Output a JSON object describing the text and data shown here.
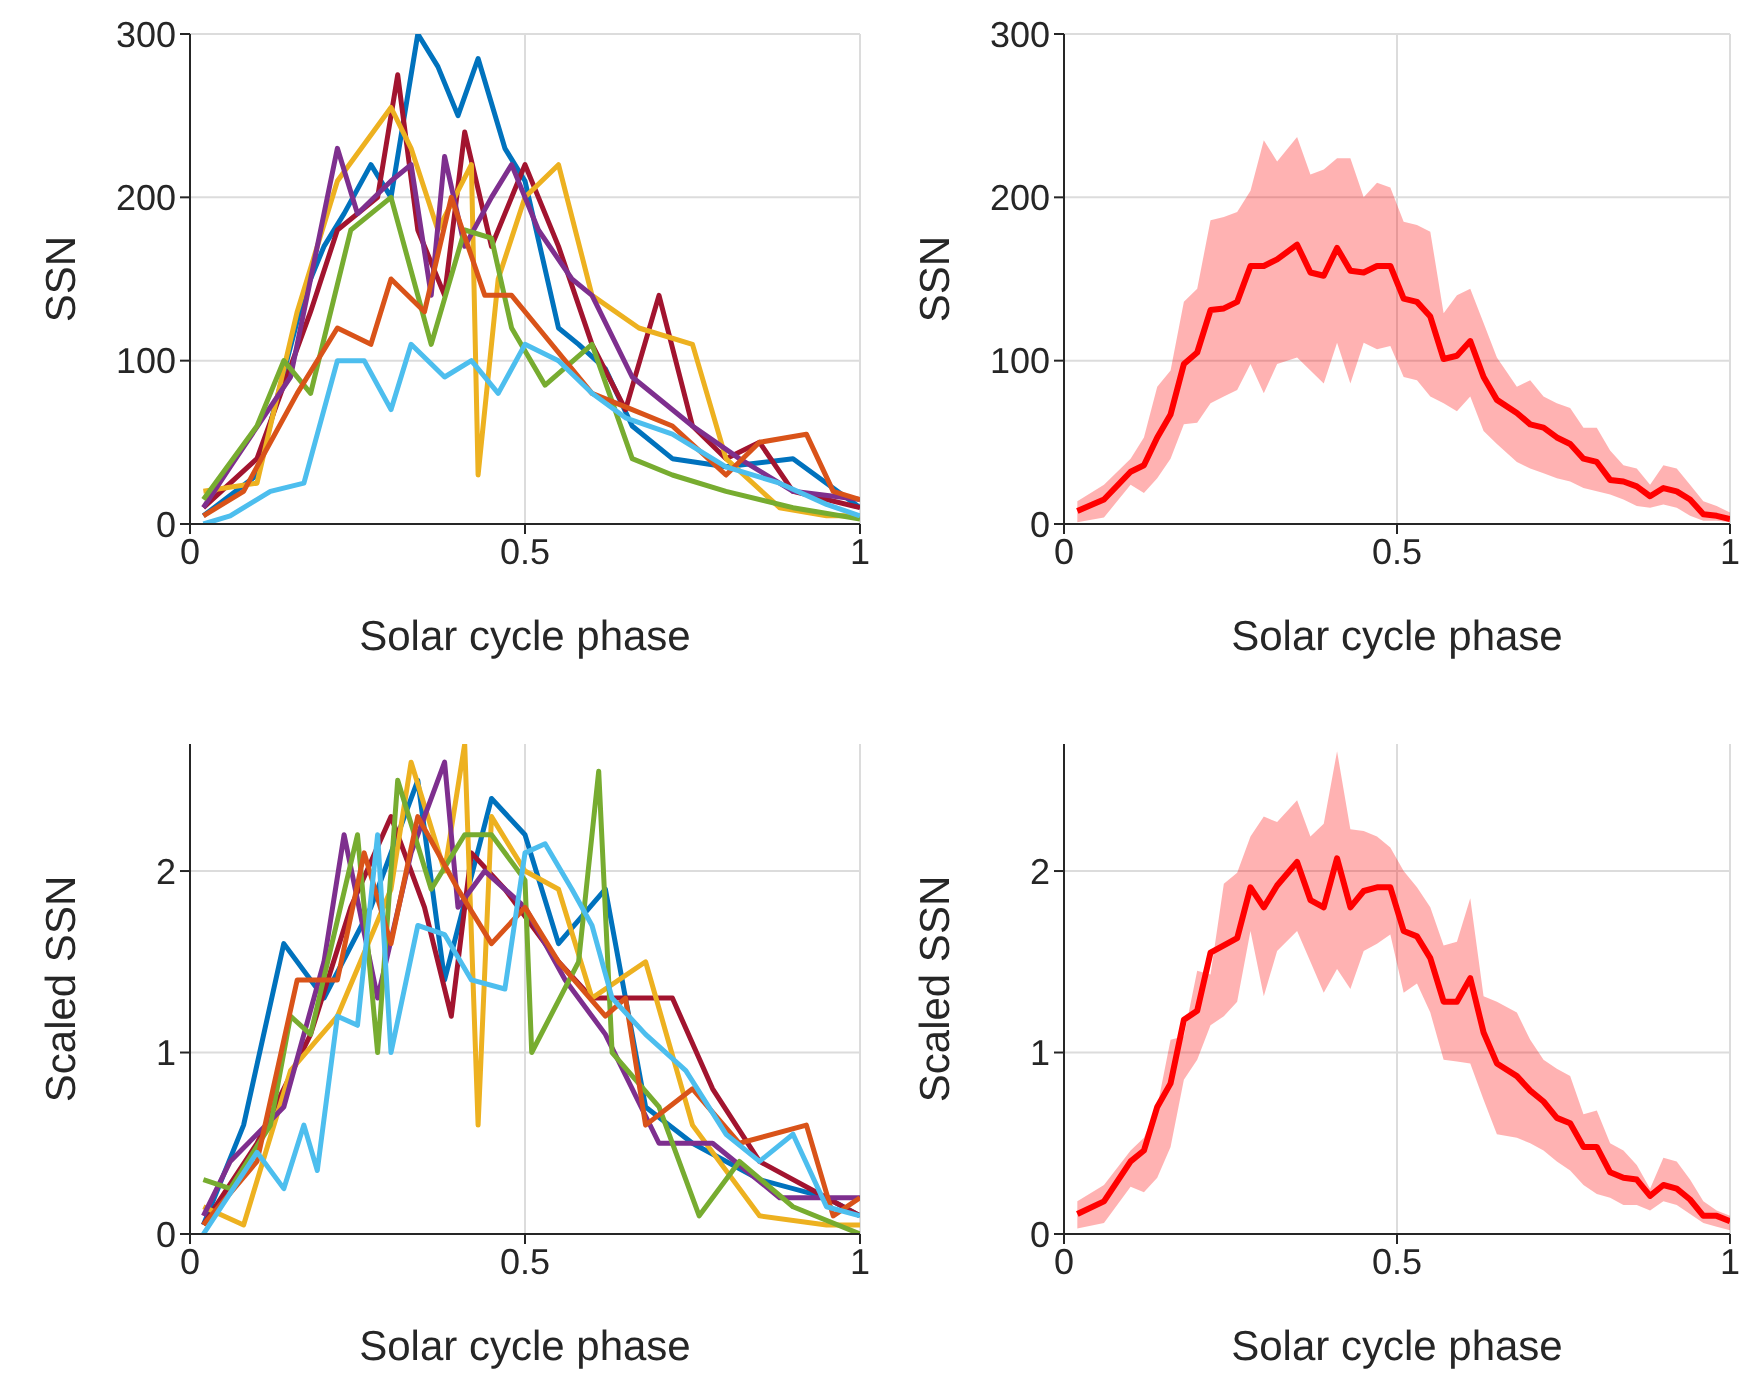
{
  "chart_data": [
    {
      "type": "line",
      "xlabel": "Solar cycle phase",
      "ylabel": "SSN",
      "xlim": [
        0,
        1
      ],
      "xticks": [
        0,
        0.5,
        1
      ],
      "ylim": [
        0,
        300
      ],
      "yticks": [
        0,
        100,
        200,
        300
      ],
      "grid": true,
      "line_style": "solid",
      "marker": "none",
      "series": [
        {
          "color": "#0072bd",
          "x": [
            0.02,
            0.1,
            0.17,
            0.2,
            0.23,
            0.27,
            0.3,
            0.34,
            0.37,
            0.4,
            0.43,
            0.47,
            0.5,
            0.55,
            0.58,
            0.62,
            0.66,
            0.72,
            0.8,
            0.9,
            0.95,
            1.0
          ],
          "values": [
            5,
            30,
            140,
            170,
            190,
            220,
            200,
            300,
            280,
            250,
            285,
            230,
            210,
            120,
            110,
            95,
            60,
            40,
            35,
            40,
            25,
            10
          ]
        },
        {
          "color": "#a2142f",
          "x": [
            0.02,
            0.1,
            0.18,
            0.22,
            0.28,
            0.31,
            0.34,
            0.38,
            0.41,
            0.45,
            0.5,
            0.55,
            0.6,
            0.65,
            0.7,
            0.75,
            0.8,
            0.85,
            0.9,
            1.0
          ],
          "values": [
            10,
            40,
            130,
            180,
            200,
            275,
            180,
            140,
            240,
            170,
            220,
            170,
            110,
            70,
            140,
            60,
            40,
            50,
            20,
            10
          ]
        },
        {
          "color": "#edb120",
          "x": [
            0.02,
            0.1,
            0.16,
            0.22,
            0.3,
            0.33,
            0.37,
            0.42,
            0.43,
            0.46,
            0.5,
            0.55,
            0.6,
            0.67,
            0.75,
            0.8,
            0.88,
            0.95,
            1.0
          ],
          "values": [
            20,
            25,
            130,
            210,
            255,
            230,
            180,
            220,
            30,
            150,
            200,
            220,
            140,
            120,
            110,
            40,
            10,
            5,
            5
          ]
        },
        {
          "color": "#7e2f8e",
          "x": [
            0.02,
            0.06,
            0.15,
            0.22,
            0.25,
            0.3,
            0.33,
            0.36,
            0.38,
            0.41,
            0.45,
            0.48,
            0.52,
            0.57,
            0.6,
            0.66,
            0.75,
            0.82,
            0.9,
            1.0
          ],
          "values": [
            10,
            35,
            90,
            230,
            190,
            210,
            220,
            140,
            225,
            170,
            200,
            220,
            180,
            150,
            140,
            90,
            60,
            40,
            20,
            15
          ]
        },
        {
          "color": "#77ac30",
          "x": [
            0.02,
            0.1,
            0.14,
            0.18,
            0.24,
            0.3,
            0.36,
            0.41,
            0.45,
            0.48,
            0.53,
            0.6,
            0.66,
            0.72,
            0.8,
            0.9,
            1.0
          ],
          "values": [
            15,
            60,
            100,
            80,
            180,
            200,
            110,
            180,
            175,
            120,
            85,
            110,
            40,
            30,
            20,
            10,
            3
          ]
        },
        {
          "color": "#d95319",
          "x": [
            0.02,
            0.08,
            0.16,
            0.22,
            0.27,
            0.3,
            0.35,
            0.39,
            0.44,
            0.48,
            0.52,
            0.6,
            0.66,
            0.72,
            0.8,
            0.85,
            0.92,
            0.96,
            1.0
          ],
          "values": [
            5,
            20,
            80,
            120,
            110,
            150,
            130,
            200,
            140,
            140,
            120,
            80,
            70,
            60,
            30,
            50,
            55,
            20,
            15
          ]
        },
        {
          "color": "#4dbeee",
          "x": [
            0.02,
            0.06,
            0.12,
            0.17,
            0.22,
            0.26,
            0.3,
            0.33,
            0.38,
            0.42,
            0.46,
            0.5,
            0.55,
            0.6,
            0.65,
            0.72,
            0.8,
            0.88,
            0.95,
            1.0
          ],
          "values": [
            0,
            5,
            20,
            25,
            100,
            100,
            70,
            110,
            90,
            100,
            80,
            110,
            100,
            80,
            65,
            55,
            35,
            25,
            12,
            5
          ]
        }
      ]
    },
    {
      "type": "line",
      "xlabel": "Solar cycle phase",
      "ylabel": "SSN",
      "xlim": [
        0,
        1
      ],
      "xticks": [
        0,
        0.5,
        1
      ],
      "ylim": [
        0,
        300
      ],
      "yticks": [
        0,
        100,
        200,
        300
      ],
      "grid": true,
      "line_style": "solid",
      "marker": "none",
      "series": [
        {
          "color": "#ff0000",
          "x": [
            0.02,
            0.06,
            0.1,
            0.12,
            0.14,
            0.16,
            0.18,
            0.2,
            0.22,
            0.24,
            0.26,
            0.28,
            0.3,
            0.32,
            0.35,
            0.37,
            0.39,
            0.41,
            0.43,
            0.45,
            0.47,
            0.49,
            0.51,
            0.53,
            0.55,
            0.57,
            0.59,
            0.61,
            0.63,
            0.65,
            0.68,
            0.7,
            0.72,
            0.74,
            0.76,
            0.78,
            0.8,
            0.82,
            0.84,
            0.86,
            0.88,
            0.9,
            0.92,
            0.94,
            0.96,
            0.98,
            1.0
          ],
          "values": [
            8,
            15,
            32,
            36,
            53,
            67,
            98,
            105,
            131,
            132,
            136,
            158,
            158,
            162,
            171,
            154,
            152,
            169,
            155,
            154,
            158,
            158,
            138,
            136,
            127,
            101,
            103,
            112,
            90,
            76,
            68,
            61,
            59,
            53,
            49,
            40,
            38,
            27,
            26,
            23,
            17,
            22,
            20,
            15,
            6,
            5,
            3
          ],
          "upper": [
            14,
            24,
            40,
            53,
            84,
            94,
            136,
            144,
            186,
            188,
            191,
            204,
            235,
            222,
            237,
            214,
            217,
            224,
            224,
            200,
            209,
            206,
            185,
            183,
            179,
            129,
            140,
            144,
            123,
            102,
            84,
            88,
            78,
            74,
            71,
            59,
            59,
            45,
            36,
            34,
            24,
            36,
            34,
            24,
            14,
            11,
            7
          ],
          "lower": [
            1,
            4,
            24,
            19,
            28,
            40,
            61,
            62,
            74,
            78,
            82,
            98,
            80,
            98,
            102,
            94,
            86,
            111,
            86,
            111,
            107,
            109,
            90,
            88,
            78,
            74,
            69,
            78,
            57,
            49,
            38,
            34,
            31,
            28,
            26,
            22,
            20,
            18,
            15,
            11,
            10,
            12,
            10,
            5,
            2,
            2,
            1
          ]
        }
      ]
    },
    {
      "type": "line",
      "xlabel": "Solar cycle phase",
      "ylabel": "Scaled SSN",
      "xlim": [
        0,
        1
      ],
      "xticks": [
        0,
        0.5,
        1
      ],
      "ylim": [
        0,
        2.7
      ],
      "yticks": [
        0,
        1,
        2
      ],
      "grid": true,
      "line_style": "solid",
      "marker": "none",
      "series": [
        {
          "color": "#0072bd",
          "x": [
            0.02,
            0.08,
            0.14,
            0.2,
            0.27,
            0.34,
            0.38,
            0.45,
            0.5,
            0.55,
            0.62,
            0.68,
            0.75,
            0.85,
            0.95,
            1.0
          ],
          "values": [
            0.05,
            0.6,
            1.6,
            1.3,
            1.8,
            2.5,
            1.4,
            2.4,
            2.2,
            1.6,
            1.9,
            0.7,
            0.5,
            0.3,
            0.2,
            0.1
          ]
        },
        {
          "color": "#a2142f",
          "x": [
            0.02,
            0.1,
            0.18,
            0.24,
            0.3,
            0.35,
            0.39,
            0.42,
            0.47,
            0.55,
            0.6,
            0.72,
            0.78,
            0.85,
            0.95,
            1.0
          ],
          "values": [
            0.05,
            0.5,
            1.1,
            1.8,
            2.3,
            1.8,
            1.2,
            2.1,
            1.9,
            1.5,
            1.3,
            1.3,
            0.8,
            0.4,
            0.2,
            0.1
          ]
        },
        {
          "color": "#edb120",
          "x": [
            0.02,
            0.08,
            0.15,
            0.22,
            0.3,
            0.33,
            0.38,
            0.41,
            0.43,
            0.45,
            0.5,
            0.55,
            0.6,
            0.68,
            0.75,
            0.85,
            0.95,
            1.0
          ],
          "values": [
            0.15,
            0.05,
            0.9,
            1.2,
            1.9,
            2.6,
            2.0,
            2.7,
            0.6,
            2.3,
            2.0,
            1.9,
            1.3,
            1.5,
            0.6,
            0.1,
            0.05,
            0.05
          ]
        },
        {
          "color": "#7e2f8e",
          "x": [
            0.02,
            0.06,
            0.14,
            0.2,
            0.23,
            0.28,
            0.33,
            0.38,
            0.4,
            0.44,
            0.5,
            0.56,
            0.62,
            0.7,
            0.78,
            0.88,
            1.0
          ],
          "values": [
            0.1,
            0.4,
            0.7,
            1.5,
            2.2,
            1.3,
            2.1,
            2.6,
            1.8,
            2.0,
            1.8,
            1.4,
            1.1,
            0.5,
            0.5,
            0.2,
            0.2
          ]
        },
        {
          "color": "#77ac30",
          "x": [
            0.02,
            0.06,
            0.12,
            0.15,
            0.18,
            0.25,
            0.28,
            0.31,
            0.36,
            0.41,
            0.45,
            0.5,
            0.51,
            0.58,
            0.61,
            0.63,
            0.7,
            0.76,
            0.82,
            0.9,
            1.0
          ],
          "values": [
            0.3,
            0.25,
            0.6,
            1.2,
            1.1,
            2.2,
            1.0,
            2.5,
            1.9,
            2.2,
            2.2,
            1.95,
            1.0,
            1.5,
            2.55,
            1.0,
            0.7,
            0.1,
            0.4,
            0.15,
            0.0
          ]
        },
        {
          "color": "#d95319",
          "x": [
            0.02,
            0.1,
            0.16,
            0.22,
            0.26,
            0.3,
            0.34,
            0.4,
            0.45,
            0.5,
            0.55,
            0.62,
            0.65,
            0.68,
            0.75,
            0.82,
            0.92,
            0.96,
            1.0
          ],
          "values": [
            0.05,
            0.4,
            1.4,
            1.4,
            2.1,
            1.6,
            2.3,
            1.9,
            1.6,
            1.8,
            1.5,
            1.2,
            1.3,
            0.6,
            0.8,
            0.5,
            0.6,
            0.1,
            0.2
          ]
        },
        {
          "color": "#4dbeee",
          "x": [
            0.02,
            0.1,
            0.14,
            0.17,
            0.19,
            0.22,
            0.25,
            0.28,
            0.3,
            0.34,
            0.38,
            0.42,
            0.47,
            0.5,
            0.53,
            0.57,
            0.6,
            0.63,
            0.68,
            0.74,
            0.8,
            0.85,
            0.9,
            0.95,
            1.0
          ],
          "values": [
            0.0,
            0.45,
            0.25,
            0.6,
            0.35,
            1.2,
            1.15,
            2.2,
            1.0,
            1.7,
            1.65,
            1.4,
            1.35,
            2.1,
            2.15,
            1.9,
            1.7,
            1.3,
            1.1,
            0.9,
            0.55,
            0.4,
            0.55,
            0.15,
            0.1
          ]
        }
      ]
    },
    {
      "type": "line",
      "xlabel": "Solar cycle phase",
      "ylabel": "Scaled SSN",
      "xlim": [
        0,
        1
      ],
      "xticks": [
        0,
        0.5,
        1
      ],
      "ylim": [
        0,
        2.7
      ],
      "yticks": [
        0,
        1,
        2
      ],
      "grid": true,
      "line_style": "solid",
      "marker": "none",
      "series": [
        {
          "color": "#ff0000",
          "x": [
            0.02,
            0.06,
            0.1,
            0.12,
            0.14,
            0.16,
            0.18,
            0.2,
            0.22,
            0.24,
            0.26,
            0.28,
            0.3,
            0.32,
            0.35,
            0.37,
            0.39,
            0.41,
            0.43,
            0.45,
            0.47,
            0.49,
            0.51,
            0.53,
            0.55,
            0.57,
            0.59,
            0.61,
            0.63,
            0.65,
            0.68,
            0.7,
            0.72,
            0.74,
            0.76,
            0.78,
            0.8,
            0.82,
            0.84,
            0.86,
            0.88,
            0.9,
            0.92,
            0.94,
            0.96,
            0.98,
            1.0
          ],
          "values": [
            0.11,
            0.18,
            0.4,
            0.46,
            0.7,
            0.83,
            1.18,
            1.23,
            1.55,
            1.59,
            1.63,
            1.91,
            1.8,
            1.92,
            2.05,
            1.84,
            1.8,
            2.07,
            1.8,
            1.89,
            1.91,
            1.91,
            1.67,
            1.64,
            1.52,
            1.28,
            1.28,
            1.41,
            1.11,
            0.94,
            0.87,
            0.79,
            0.73,
            0.64,
            0.61,
            0.48,
            0.48,
            0.34,
            0.31,
            0.3,
            0.21,
            0.27,
            0.25,
            0.19,
            0.1,
            0.1,
            0.07
          ],
          "upper": [
            0.18,
            0.27,
            0.46,
            0.53,
            0.7,
            1.07,
            1.09,
            1.45,
            1.43,
            1.93,
            1.99,
            2.19,
            2.3,
            2.27,
            2.39,
            2.19,
            2.26,
            2.66,
            2.23,
            2.22,
            2.19,
            2.13,
            2.0,
            1.91,
            1.8,
            1.59,
            1.61,
            1.85,
            1.31,
            1.28,
            1.22,
            1.07,
            0.96,
            0.91,
            0.87,
            0.66,
            0.68,
            0.5,
            0.46,
            0.38,
            0.25,
            0.42,
            0.4,
            0.3,
            0.18,
            0.13,
            0.1
          ],
          "lower": [
            0.03,
            0.06,
            0.26,
            0.23,
            0.31,
            0.48,
            0.85,
            0.96,
            1.15,
            1.2,
            1.28,
            1.67,
            1.31,
            1.56,
            1.67,
            1.5,
            1.33,
            1.46,
            1.35,
            1.56,
            1.6,
            1.65,
            1.33,
            1.38,
            1.22,
            0.96,
            0.95,
            0.94,
            0.74,
            0.55,
            0.53,
            0.5,
            0.46,
            0.4,
            0.35,
            0.27,
            0.22,
            0.2,
            0.16,
            0.16,
            0.13,
            0.18,
            0.16,
            0.11,
            0.06,
            0.04,
            0.02
          ]
        }
      ]
    }
  ]
}
